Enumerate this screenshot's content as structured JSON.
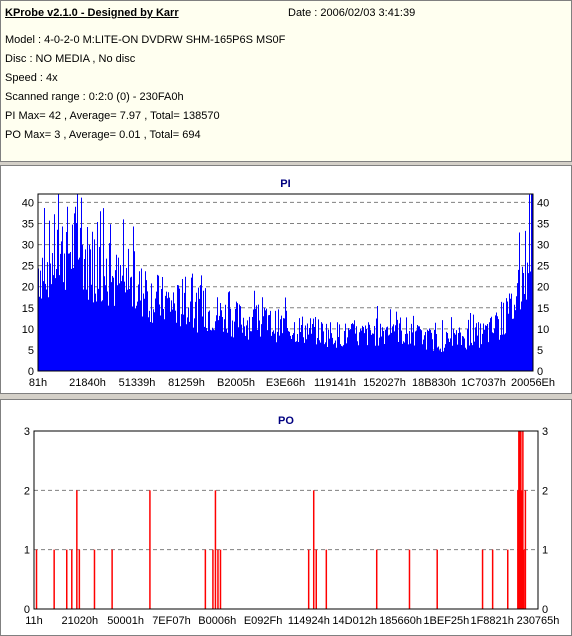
{
  "header": {
    "title": "KProbe v2.1.0 - Designed by Karr",
    "date": "Date : 2006/02/03 3:41:39",
    "lines": [
      "Model : 4-0-2-0 M:LITE-ON DVDRW SHM-165P6S MS0F",
      "Disc : NO MEDIA , No disc",
      "Speed : 4x",
      "Scanned range : 0:2:0 (0) - 230FA0h",
      "PI Max= 42 , Average= 7.97 , Total= 138570",
      "PO Max= 3 , Average= 0.01 , Total= 694"
    ]
  },
  "colors": {
    "pi": "#0000ff",
    "po": "#ff0000",
    "grid": "#808080"
  },
  "chart_data": [
    {
      "type": "bar",
      "title": "PI",
      "ylim": [
        0,
        42
      ],
      "yticks": [
        0,
        5,
        10,
        15,
        20,
        25,
        30,
        35,
        40
      ],
      "xticks": [
        "81h",
        "21840h",
        "51339h",
        "81259h",
        "B2005h",
        "E3E66h",
        "119141h",
        "152027h",
        "18B830h",
        "1C7037h",
        "20056Eh"
      ],
      "envelope": [
        [
          0,
          28
        ],
        [
          0.02,
          30
        ],
        [
          0.05,
          33
        ],
        [
          0.08,
          34
        ],
        [
          0.1,
          30
        ],
        [
          0.13,
          27
        ],
        [
          0.16,
          24
        ],
        [
          0.2,
          22
        ],
        [
          0.25,
          19
        ],
        [
          0.3,
          17
        ],
        [
          0.35,
          16
        ],
        [
          0.4,
          14
        ],
        [
          0.45,
          13
        ],
        [
          0.5,
          12
        ],
        [
          0.55,
          11
        ],
        [
          0.6,
          10
        ],
        [
          0.65,
          9.5
        ],
        [
          0.7,
          11
        ],
        [
          0.72,
          13
        ],
        [
          0.74,
          10
        ],
        [
          0.78,
          9
        ],
        [
          0.82,
          8
        ],
        [
          0.86,
          9
        ],
        [
          0.9,
          10
        ],
        [
          0.93,
          12
        ],
        [
          0.95,
          15
        ],
        [
          0.97,
          20
        ],
        [
          0.985,
          28
        ],
        [
          1.0,
          42
        ]
      ]
    },
    {
      "type": "bar",
      "title": "PO",
      "ylim": [
        0,
        3
      ],
      "yticks": [
        0,
        1,
        2,
        3
      ],
      "xticks": [
        "11h",
        "21020h",
        "50001h",
        "7EF07h",
        "B0006h",
        "E092Fh",
        "114924h",
        "14D012h",
        "185660h",
        "1BEF25h",
        "1F8821h",
        "230765h"
      ],
      "spikes": [
        [
          0.005,
          1
        ],
        [
          0.04,
          1
        ],
        [
          0.065,
          1
        ],
        [
          0.075,
          1
        ],
        [
          0.085,
          2
        ],
        [
          0.09,
          1
        ],
        [
          0.12,
          1
        ],
        [
          0.155,
          1
        ],
        [
          0.23,
          2
        ],
        [
          0.34,
          1
        ],
        [
          0.355,
          1
        ],
        [
          0.36,
          2
        ],
        [
          0.365,
          1
        ],
        [
          0.37,
          1
        ],
        [
          0.545,
          1
        ],
        [
          0.555,
          2
        ],
        [
          0.56,
          1
        ],
        [
          0.58,
          1
        ],
        [
          0.68,
          1
        ],
        [
          0.745,
          1
        ],
        [
          0.8,
          1
        ],
        [
          0.89,
          1
        ],
        [
          0.91,
          1
        ],
        [
          0.94,
          1
        ],
        [
          0.96,
          2
        ],
        [
          0.962,
          3
        ],
        [
          0.964,
          3
        ],
        [
          0.966,
          3
        ],
        [
          0.968,
          2
        ],
        [
          0.97,
          3
        ],
        [
          0.972,
          1
        ],
        [
          0.975,
          2
        ]
      ]
    }
  ]
}
